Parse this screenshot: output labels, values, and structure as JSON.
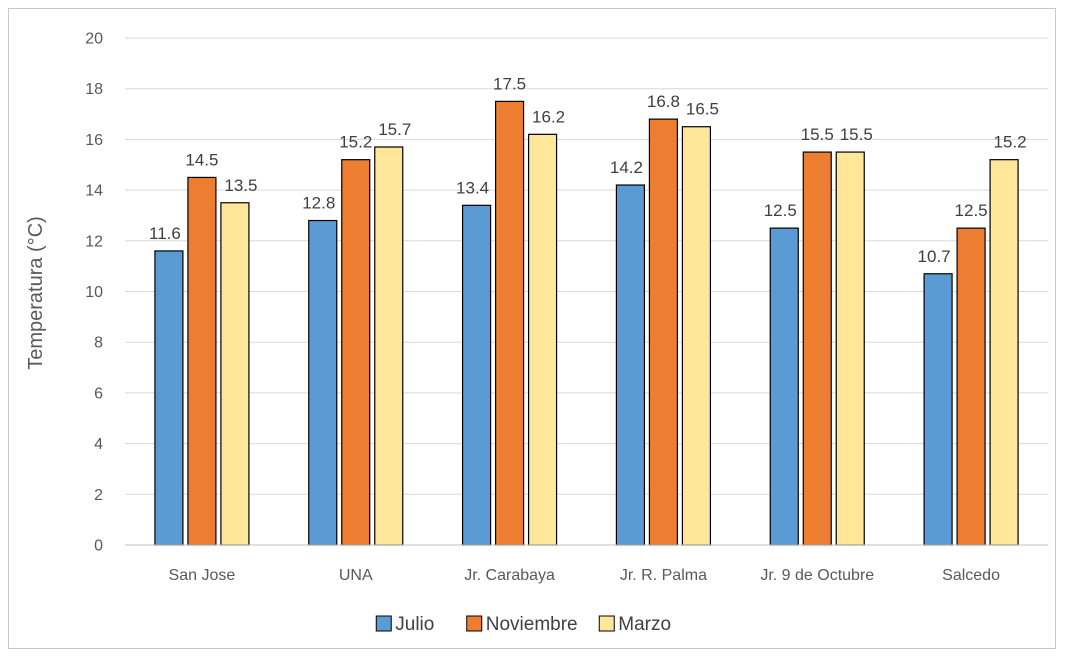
{
  "chart_data": {
    "type": "bar",
    "title": "",
    "xlabel": "",
    "ylabel": "Temperatura (°C)",
    "ylim": [
      0,
      20
    ],
    "yticks": [
      0,
      2,
      4,
      6,
      8,
      10,
      12,
      14,
      16,
      18,
      20
    ],
    "grid": true,
    "legend_position": "bottom",
    "categories": [
      "San Jose",
      "UNA",
      "Jr. Carabaya",
      "Jr. R. Palma",
      "Jr. 9 de Octubre",
      "Salcedo"
    ],
    "series": [
      {
        "name": "Julio",
        "color": "#5b9bd5",
        "values": [
          11.6,
          12.8,
          13.4,
          14.2,
          12.5,
          10.7
        ]
      },
      {
        "name": "Noviembre",
        "color": "#ed7d31",
        "values": [
          14.5,
          15.2,
          17.5,
          16.8,
          15.5,
          12.5
        ]
      },
      {
        "name": "Marzo",
        "color": "#ffe699",
        "values": [
          13.5,
          15.7,
          16.2,
          16.5,
          15.5,
          15.2
        ]
      }
    ]
  }
}
